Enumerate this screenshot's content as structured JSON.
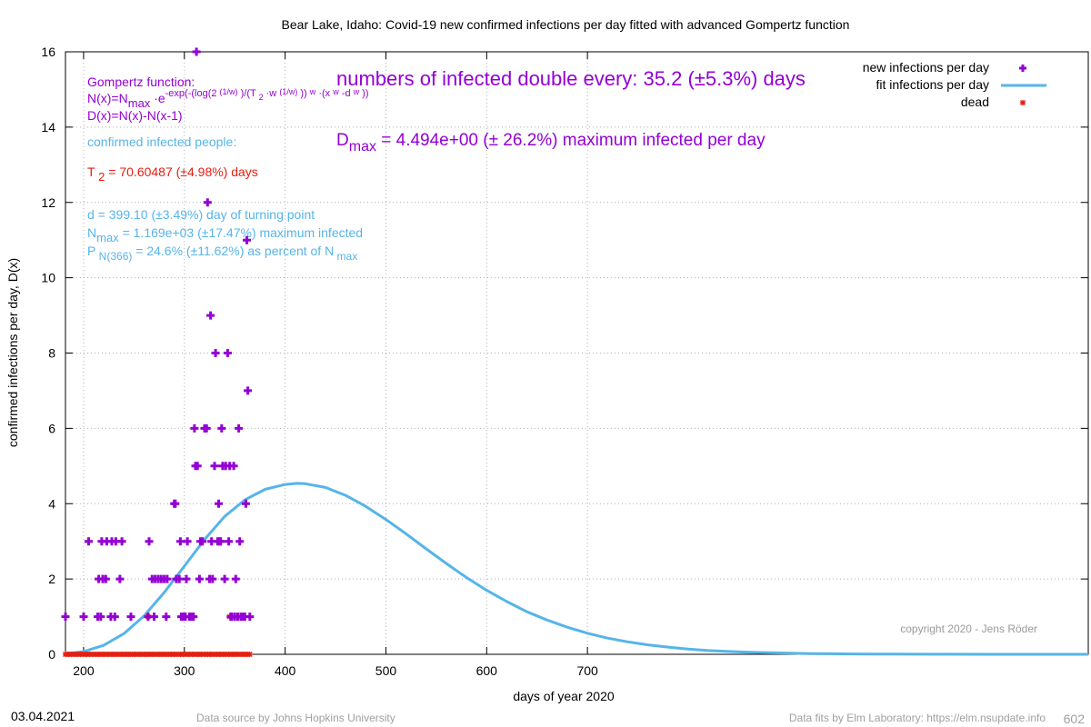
{
  "chart_data": {
    "type": "scatter",
    "title": "Bear Lake,  Idaho: Covid-19 new confirmed infections per day fitted with advanced Gompertz function",
    "xlabel": "days of year 2020",
    "ylabel": "confirmed infections per day, D(x)",
    "xlim": [
      182,
      1197
    ],
    "ylim": [
      0,
      16
    ],
    "x_ticks": [
      "200",
      "300",
      "400",
      "500",
      "600",
      "700"
    ],
    "y_ticks": [
      "0",
      "2",
      "4",
      "6",
      "8",
      "10",
      "12",
      "14",
      "16"
    ],
    "grid": true,
    "legend_position": "top-right",
    "legend": {
      "new": "new infections per day",
      "fit": "fit infections per day",
      "dead": "dead"
    },
    "colors": {
      "new": "#9400d3",
      "fit": "#56b4e9",
      "dead": "#e51e10",
      "purple_text": "#9400d3",
      "blue_text": "#56b4e9",
      "red_text": "#e51e10"
    },
    "series": [
      {
        "name": "new infections per day",
        "points": [
          [
            182,
            1
          ],
          [
            200,
            1
          ],
          [
            205,
            3
          ],
          [
            214,
            1
          ],
          [
            215,
            2
          ],
          [
            217,
            1
          ],
          [
            218,
            3
          ],
          [
            219,
            2
          ],
          [
            222,
            2
          ],
          [
            223,
            3
          ],
          [
            227,
            1
          ],
          [
            228,
            3
          ],
          [
            231,
            1
          ],
          [
            232,
            3
          ],
          [
            236,
            2
          ],
          [
            238,
            3
          ],
          [
            247,
            1
          ],
          [
            264,
            1
          ],
          [
            265,
            3
          ],
          [
            268,
            2
          ],
          [
            270,
            1
          ],
          [
            271,
            2
          ],
          [
            274,
            2
          ],
          [
            277,
            2
          ],
          [
            280,
            2
          ],
          [
            282,
            1
          ],
          [
            283,
            2
          ],
          [
            290,
            4
          ],
          [
            291,
            4
          ],
          [
            292,
            2
          ],
          [
            295,
            2
          ],
          [
            296,
            3
          ],
          [
            297,
            1
          ],
          [
            299,
            1
          ],
          [
            301,
            1
          ],
          [
            302,
            2
          ],
          [
            303,
            3
          ],
          [
            305,
            1
          ],
          [
            307,
            1
          ],
          [
            309,
            1
          ],
          [
            310,
            6
          ],
          [
            311,
            5
          ],
          [
            312,
            16
          ],
          [
            313,
            5
          ],
          [
            315,
            2
          ],
          [
            316,
            3
          ],
          [
            318,
            3
          ],
          [
            320,
            6
          ],
          [
            322,
            6
          ],
          [
            323,
            12
          ],
          [
            325,
            2
          ],
          [
            326,
            9
          ],
          [
            327,
            3
          ],
          [
            328,
            2
          ],
          [
            330,
            5
          ],
          [
            331,
            8
          ],
          [
            333,
            3
          ],
          [
            334,
            4
          ],
          [
            335,
            3
          ],
          [
            336,
            3
          ],
          [
            337,
            6
          ],
          [
            338,
            5
          ],
          [
            340,
            2
          ],
          [
            341,
            5
          ],
          [
            343,
            8
          ],
          [
            344,
            3
          ],
          [
            345,
            5
          ],
          [
            346,
            1
          ],
          [
            347,
            1
          ],
          [
            349,
            5
          ],
          [
            350,
            1
          ],
          [
            351,
            2
          ],
          [
            353,
            1
          ],
          [
            354,
            6
          ],
          [
            355,
            3
          ],
          [
            356,
            1
          ],
          [
            358,
            1
          ],
          [
            360,
            1
          ],
          [
            361,
            4
          ],
          [
            362,
            11
          ],
          [
            363,
            7
          ],
          [
            365,
            1
          ]
        ]
      },
      {
        "name": "fit infections per day",
        "points": [
          [
            182,
            0.018
          ],
          [
            200,
            0.07
          ],
          [
            220,
            0.24
          ],
          [
            240,
            0.55
          ],
          [
            260,
            1.02
          ],
          [
            280,
            1.64
          ],
          [
            300,
            2.34
          ],
          [
            320,
            3.05
          ],
          [
            340,
            3.66
          ],
          [
            360,
            4.1
          ],
          [
            380,
            4.38
          ],
          [
            400,
            4.51
          ],
          [
            412,
            4.54
          ],
          [
            420,
            4.53
          ],
          [
            440,
            4.43
          ],
          [
            460,
            4.22
          ],
          [
            480,
            3.93
          ],
          [
            500,
            3.58
          ],
          [
            520,
            3.2
          ],
          [
            540,
            2.8
          ],
          [
            560,
            2.41
          ],
          [
            580,
            2.04
          ],
          [
            600,
            1.7
          ],
          [
            620,
            1.4
          ],
          [
            640,
            1.13
          ],
          [
            660,
            0.91
          ],
          [
            680,
            0.72
          ],
          [
            700,
            0.56
          ],
          [
            720,
            0.43
          ],
          [
            740,
            0.33
          ],
          [
            760,
            0.25
          ],
          [
            780,
            0.19
          ],
          [
            800,
            0.14
          ],
          [
            820,
            0.1
          ],
          [
            840,
            0.075
          ],
          [
            860,
            0.055
          ],
          [
            880,
            0.04
          ],
          [
            900,
            0.028
          ],
          [
            920,
            0.02
          ],
          [
            940,
            0.014
          ],
          [
            960,
            0.01
          ],
          [
            980,
            0.007
          ],
          [
            1000,
            0.005
          ],
          [
            1050,
            0.002
          ],
          [
            1100,
            0.001
          ],
          [
            1150,
            0.0004
          ],
          [
            1197,
            0.0002
          ]
        ]
      },
      {
        "name": "dead",
        "points": [
          [
            264,
            1
          ],
          [
            345,
            1
          ],
          [
            182,
            0
          ],
          [
            185,
            0
          ],
          [
            188,
            0
          ],
          [
            191,
            0
          ],
          [
            194,
            0
          ],
          [
            197,
            0
          ],
          [
            200,
            0
          ],
          [
            203,
            0
          ],
          [
            206,
            0
          ],
          [
            209,
            0
          ],
          [
            212,
            0
          ],
          [
            215,
            0
          ],
          [
            218,
            0
          ],
          [
            221,
            0
          ],
          [
            224,
            0
          ],
          [
            227,
            0
          ],
          [
            230,
            0
          ],
          [
            233,
            0
          ],
          [
            236,
            0
          ],
          [
            239,
            0
          ],
          [
            242,
            0
          ],
          [
            245,
            0
          ],
          [
            248,
            0
          ],
          [
            251,
            0
          ],
          [
            254,
            0
          ],
          [
            257,
            0
          ],
          [
            260,
            0
          ],
          [
            263,
            0
          ],
          [
            266,
            0
          ],
          [
            269,
            0
          ],
          [
            272,
            0
          ],
          [
            275,
            0
          ],
          [
            278,
            0
          ],
          [
            281,
            0
          ],
          [
            284,
            0
          ],
          [
            287,
            0
          ],
          [
            290,
            0
          ],
          [
            293,
            0
          ],
          [
            296,
            0
          ],
          [
            299,
            0
          ],
          [
            302,
            0
          ],
          [
            305,
            0
          ],
          [
            308,
            0
          ],
          [
            311,
            0
          ],
          [
            314,
            0
          ],
          [
            317,
            0
          ],
          [
            320,
            0
          ],
          [
            323,
            0
          ],
          [
            326,
            0
          ],
          [
            329,
            0
          ],
          [
            332,
            0
          ],
          [
            335,
            0
          ],
          [
            338,
            0
          ],
          [
            341,
            0
          ],
          [
            344,
            0
          ],
          [
            347,
            0
          ],
          [
            350,
            0
          ],
          [
            353,
            0
          ],
          [
            356,
            0
          ],
          [
            359,
            0
          ],
          [
            362,
            0
          ],
          [
            365,
            0
          ]
        ]
      }
    ],
    "annotations": {
      "gompertz_title": "Gompertz function:",
      "gompertz_formula_n": "N(x)=N max ·e -exp(-(log(2 (1/w) )/(T 2 ·w (1/w) )) w ·(x w -d w ))",
      "gompertz_formula_d": "D(x)=N(x)-N(x-1)",
      "confirmed_label": "confirmed infected people:",
      "t2_line": "T 2 = 70.60487 (±4.98%) days",
      "turning_point_line": "d = 399.10 (±3.49%) day of turning point",
      "nmax_line": "N max  = 1.169e+03 (±17.47%) maximum infected",
      "percent_line": "P N(366)  = 24.6% (±11.62%) as percent of N max",
      "doubling_line": "numbers of infected double every: 35.2 (±5.3%) days",
      "dmax_line": "D max  = 4.494e+00 (± 26.2%) maximum infected per day",
      "copyright": "copyright 2020 - Jens Röder"
    }
  },
  "footer": {
    "date": "03.04.2021",
    "source": "Data source by Johns Hopkins University",
    "fits": "Data fits by Elm Laboratory: https://elm.nsupdate.info",
    "page_number": "602"
  }
}
